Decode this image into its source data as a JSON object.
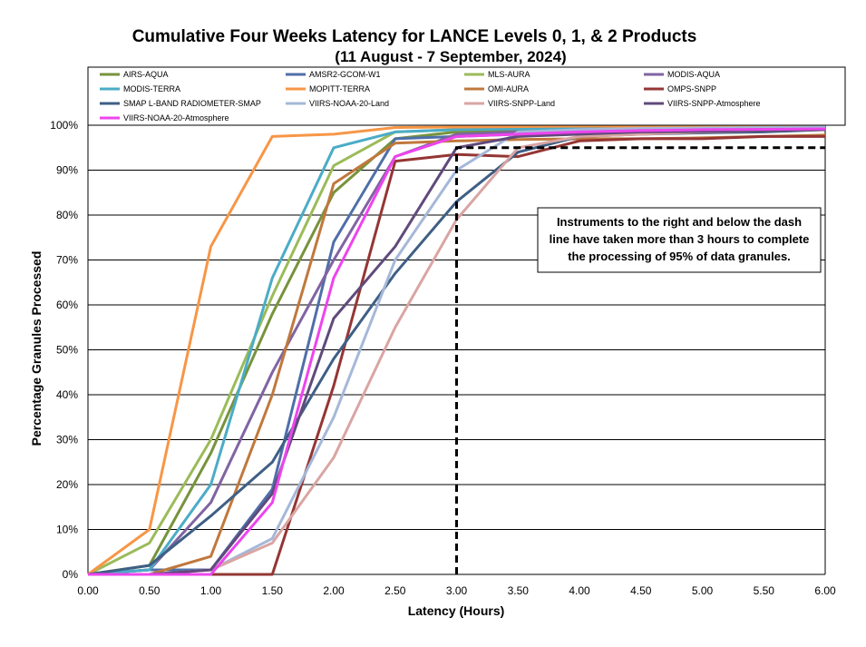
{
  "chart_data": {
    "type": "line",
    "title": "Cumulative Four Weeks Latency  for LANCE Levels 0, 1, & 2 Products",
    "subtitle": "(11  August   -  7  September,  2024)",
    "xlabel": "Latency (Hours)",
    "ylabel": "Percentage Granules Processed",
    "xlim": [
      0,
      6
    ],
    "ylim": [
      0,
      100
    ],
    "x_ticks": [
      "0.00",
      "0.50",
      "1.00",
      "1.50",
      "2.00",
      "2.50",
      "3.00",
      "3.50",
      "4.00",
      "4.50",
      "5.00",
      "5.50",
      "6.00"
    ],
    "y_ticks": [
      "0%",
      "10%",
      "20%",
      "30%",
      "40%",
      "50%",
      "60%",
      "70%",
      "80%",
      "90%",
      "100%"
    ],
    "grid": "horizontal",
    "legend_position": "top",
    "x": [
      0,
      0.5,
      1.0,
      1.5,
      2.0,
      2.5,
      3.0,
      3.5,
      4.0,
      4.5,
      5.0,
      5.5,
      6.0
    ],
    "series": [
      {
        "name": "AIRS-AQUA",
        "color": "#77933C",
        "values": [
          0,
          2,
          27,
          58,
          85,
          97,
          98.5,
          99,
          99.3,
          99.5,
          99.6,
          99.7,
          99.8
        ]
      },
      {
        "name": "AMSR2-GCOM-W1",
        "color": "#4F6FA8",
        "values": [
          0,
          1,
          1,
          19,
          74,
          97,
          97.5,
          98,
          98,
          98.5,
          99,
          99,
          99
        ]
      },
      {
        "name": "MLS-AURA",
        "color": "#9BBB59",
        "values": [
          0,
          7,
          30,
          62,
          91,
          98.5,
          99,
          99.3,
          99.5,
          99.6,
          99.7,
          99.8,
          99.8
        ]
      },
      {
        "name": "MODIS-AQUA",
        "color": "#8064A2",
        "values": [
          0,
          1,
          16,
          45,
          70,
          93,
          98,
          98.5,
          99,
          99,
          99.2,
          99.3,
          99.4
        ]
      },
      {
        "name": "MODIS-TERRA",
        "color": "#4BACC6",
        "values": [
          0,
          1,
          20,
          66,
          95,
          98.5,
          99,
          99.2,
          99.4,
          99.5,
          99.6,
          99.7,
          99.8
        ]
      },
      {
        "name": "MOPITT-TERRA",
        "color": "#F79646",
        "values": [
          0,
          10,
          73,
          97.5,
          98,
          99.5,
          99.6,
          99.7,
          99.8,
          99.8,
          99.8,
          99.8,
          99.8
        ]
      },
      {
        "name": "OMI-AURA",
        "color": "#C0783C",
        "values": [
          0,
          0,
          4,
          40,
          87,
          96,
          96.5,
          96.8,
          97,
          97,
          97.2,
          97.5,
          97.8
        ]
      },
      {
        "name": "OMPS-SNPP",
        "color": "#943634",
        "values": [
          0,
          0,
          0,
          0,
          42,
          92,
          93.5,
          93,
          96.5,
          97,
          97,
          97.5,
          97.5
        ]
      },
      {
        "name": "SMAP L-BAND RADIOMETER-SMAP",
        "color": "#3F5F85",
        "values": [
          0,
          2,
          13,
          25,
          48,
          67,
          83,
          94,
          97.5,
          98,
          98.3,
          98.5,
          99
        ]
      },
      {
        "name": "VIIRS-NOAA-20-Land",
        "color": "#A5B8D8",
        "values": [
          0,
          0,
          1,
          8,
          35,
          70,
          90,
          98.5,
          99,
          99.3,
          99.4,
          99.5,
          99.6
        ]
      },
      {
        "name": "VIIRS-SNPP-Land",
        "color": "#D9A5A3",
        "values": [
          0,
          0,
          1,
          7,
          26,
          55,
          79,
          95,
          97.5,
          98,
          98.5,
          98.8,
          99
        ]
      },
      {
        "name": "VIIRS-SNPP-Atmosphere",
        "color": "#604A7B",
        "values": [
          0,
          0,
          1,
          18,
          57,
          73,
          95,
          97.5,
          98,
          98.5,
          98.6,
          98.8,
          99
        ]
      },
      {
        "name": "VIIRS-NOAA-20-Atmosphere",
        "color": "#EE44EE",
        "values": [
          0,
          0,
          0,
          16,
          66,
          93,
          97.5,
          98,
          98.5,
          98.8,
          99,
          99.1,
          99.2
        ]
      }
    ],
    "threshold": {
      "x_start": 3.0,
      "x_end": 6.0,
      "y": 95,
      "color": "#000000"
    },
    "note": {
      "lines": [
        "Instruments to the right and below the dash",
        "line have taken more than 3 hours to complete",
        "the processing of 95% of data granules."
      ]
    }
  }
}
